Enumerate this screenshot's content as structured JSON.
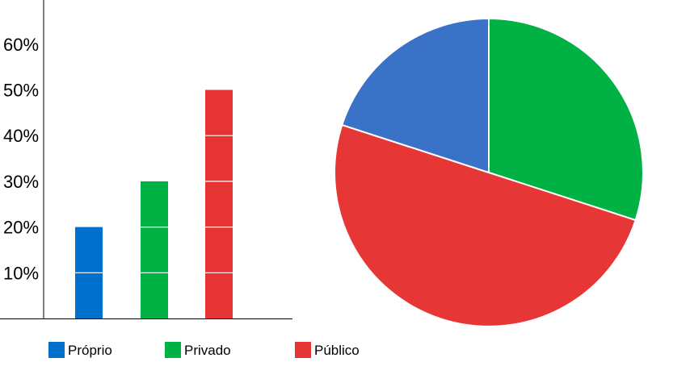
{
  "chart_data": [
    {
      "type": "bar",
      "categories": [
        "Próprio",
        "Privado",
        "Público"
      ],
      "values": [
        20,
        30,
        50
      ],
      "ylim": [
        0,
        70
      ],
      "yticks": [
        "10%",
        "20%",
        "30%",
        "40%",
        "50%",
        "60%"
      ],
      "ytick_values": [
        10,
        20,
        30,
        40,
        50,
        60
      ],
      "colors": [
        "#0070cc",
        "#00b243",
        "#e63333"
      ],
      "grid": false
    },
    {
      "type": "pie",
      "labels": [
        "Próprio",
        "Privado",
        "Público"
      ],
      "values": [
        20,
        30,
        50
      ],
      "colors": [
        "#3a72c8",
        "#00b243",
        "#e63636"
      ]
    }
  ],
  "legend": {
    "placement": "bottom",
    "items": [
      {
        "label": "Próprio",
        "color": "#0070cc"
      },
      {
        "label": "Privado",
        "color": "#00b243"
      },
      {
        "label": "Público",
        "color": "#e63333"
      }
    ]
  }
}
